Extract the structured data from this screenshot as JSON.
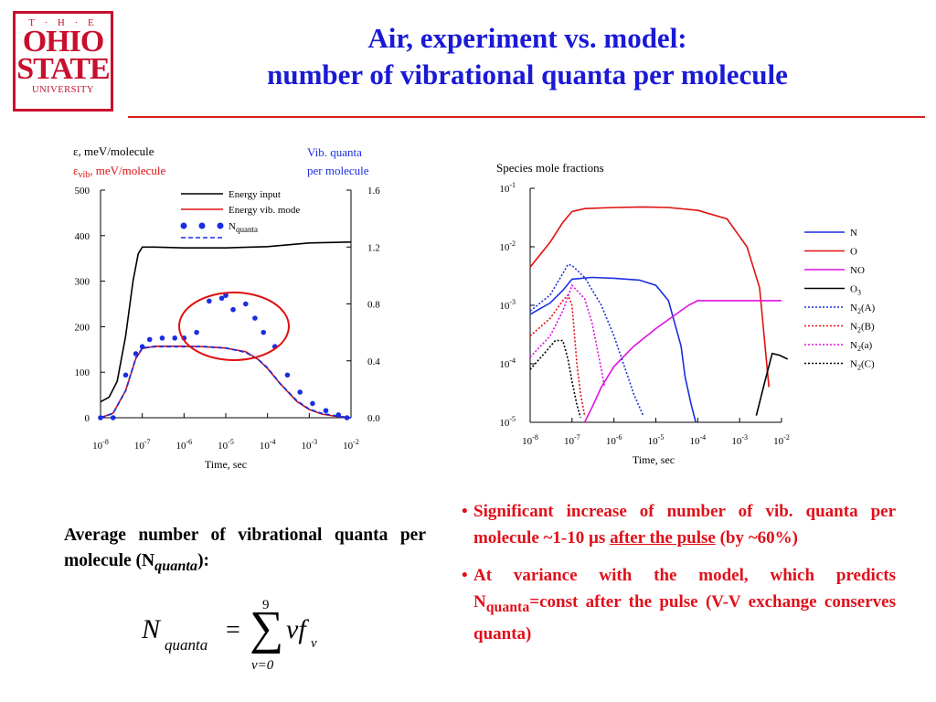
{
  "logo": {
    "line1": "T · H · E",
    "line2": "OHIO",
    "line3": "STATE",
    "line4": "UNIVERSITY"
  },
  "title": {
    "line1": "Air, experiment vs. model:",
    "line2": "number of vibrational quanta per molecule"
  },
  "colors": {
    "title": "#1a1ad6",
    "accent": "#e0101a",
    "rule": "#d6201e"
  },
  "chart_data": [
    {
      "type": "line",
      "left_axis_labels": {
        "l1": "ε, meV/molecule",
        "l2a": "ε",
        "l2b": "vib",
        "l2c": ", meV/molecule"
      },
      "right_axis_label": {
        "l1": "Vib. quanta",
        "l2": "per molecule"
      },
      "xlabel": "Time, sec",
      "x_scale": "log",
      "xlim": [
        1e-08,
        0.01
      ],
      "x_ticks": [
        {
          "b": "10",
          "e": "-8"
        },
        {
          "b": "10",
          "e": "-7"
        },
        {
          "b": "10",
          "e": "-6"
        },
        {
          "b": "10",
          "e": "-5"
        },
        {
          "b": "10",
          "e": "-4"
        },
        {
          "b": "10",
          "e": "-3"
        },
        {
          "b": "10",
          "e": "-2"
        }
      ],
      "ylim_left": [
        0,
        500
      ],
      "y_ticks_left": [
        "0",
        "100",
        "200",
        "300",
        "400",
        "500"
      ],
      "ylim_right": [
        0,
        1.6
      ],
      "y_ticks_right": [
        "0.0",
        "0.4",
        "0.8",
        "1.2",
        "1.6"
      ],
      "legend": [
        {
          "label": "Energy input",
          "color": "#000000",
          "style": "solid"
        },
        {
          "label": "Energy vib. mode",
          "color": "#e01010",
          "style": "solid"
        },
        {
          "label": "N",
          "sub": "quanta",
          "color": "#1a2ee0",
          "style": "dots+dash"
        }
      ],
      "series": [
        {
          "name": "Energy input",
          "color": "#000000",
          "axis": "left",
          "x": [
            1e-08,
            1.6e-08,
            2.5e-08,
            4e-08,
            6e-08,
            8e-08,
            1e-07,
            2e-07,
            1e-06,
            1e-05,
            0.0001,
            0.001,
            0.01
          ],
          "y": [
            35,
            45,
            80,
            180,
            300,
            360,
            375,
            375,
            373,
            373,
            376,
            384,
            386
          ]
        },
        {
          "name": "Energy vib. mode",
          "color": "#e01010",
          "axis": "left",
          "x": [
            1e-08,
            2e-08,
            4e-08,
            7e-08,
            1e-07,
            2e-07,
            5e-07,
            1e-06,
            3e-06,
            1e-05,
            3e-05,
            6e-05,
            0.0001,
            0.0002,
            0.0005,
            0.001,
            0.002,
            0.005,
            0.01
          ],
          "y": [
            0,
            10,
            60,
            130,
            152,
            157,
            157,
            157,
            156,
            153,
            145,
            128,
            108,
            75,
            36,
            18,
            8,
            2,
            0
          ]
        },
        {
          "name": "N",
          "sub": "quanta",
          "color": "#1a2ee0",
          "axis": "right",
          "style": "markers",
          "x": [
            1e-08,
            2e-08,
            4e-08,
            7e-08,
            1e-07,
            1.5e-07,
            3e-07,
            6e-07,
            1e-06,
            2e-06,
            4e-06,
            8e-06,
            1e-05,
            1.5e-05,
            3e-05,
            5e-05,
            8e-05,
            0.00015,
            0.0003,
            0.0006,
            0.0012,
            0.0025,
            0.005,
            0.008
          ],
          "y": [
            0.0,
            0.0,
            0.3,
            0.45,
            0.5,
            0.55,
            0.56,
            0.56,
            0.56,
            0.6,
            0.82,
            0.84,
            0.86,
            0.76,
            0.8,
            0.7,
            0.6,
            0.5,
            0.3,
            0.18,
            0.1,
            0.05,
            0.02,
            0.0
          ]
        },
        {
          "name": "N",
          "sub": "quanta",
          "color": "#1a2ee0",
          "axis": "right",
          "style": "dashed",
          "x": [
            1e-08,
            2e-08,
            4e-08,
            7e-08,
            1e-07,
            2e-07,
            5e-07,
            1e-06,
            3e-06,
            1e-05,
            3e-05,
            6e-05,
            0.0001,
            0.0002,
            0.0005,
            0.001,
            0.002,
            0.005,
            0.01
          ],
          "y": [
            0,
            0.03,
            0.19,
            0.42,
            0.49,
            0.5,
            0.5,
            0.5,
            0.5,
            0.49,
            0.46,
            0.41,
            0.35,
            0.24,
            0.12,
            0.06,
            0.03,
            0.01,
            0
          ]
        }
      ]
    },
    {
      "type": "line",
      "title": "Species mole fractions",
      "xlabel": "Time, sec",
      "x_scale": "log",
      "xlim": [
        1e-08,
        0.01
      ],
      "y_scale": "log",
      "ylim": [
        1e-05,
        0.1
      ],
      "x_ticks": [
        {
          "b": "10",
          "e": "-8"
        },
        {
          "b": "10",
          "e": "-7"
        },
        {
          "b": "10",
          "e": "-6"
        },
        {
          "b": "10",
          "e": "-5"
        },
        {
          "b": "10",
          "e": "-4"
        },
        {
          "b": "10",
          "e": "-3"
        },
        {
          "b": "10",
          "e": "-2"
        }
      ],
      "y_ticks": [
        {
          "b": "10",
          "e": "-5"
        },
        {
          "b": "10",
          "e": "-4"
        },
        {
          "b": "10",
          "e": "-3"
        },
        {
          "b": "10",
          "e": "-2"
        },
        {
          "b": "10",
          "e": "-1"
        }
      ],
      "legend_position": "right",
      "series": [
        {
          "name": "N",
          "color": "#1a2ee0",
          "style": "solid",
          "x": [
            1e-08,
            3e-08,
            6e-08,
            1e-07,
            3e-07,
            1e-06,
            4e-06,
            1e-05,
            2e-05,
            4e-05,
            5e-05,
            7e-05,
            9e-05
          ],
          "y": [
            0.0007,
            0.0011,
            0.0018,
            0.0028,
            0.003,
            0.0029,
            0.0027,
            0.0022,
            0.0012,
            0.0002,
            6e-05,
            2e-05,
            1e-05
          ]
        },
        {
          "name": "O",
          "color": "#e01010",
          "style": "solid",
          "x": [
            1e-08,
            3e-08,
            6e-08,
            1e-07,
            2e-07,
            1e-06,
            5e-06,
            2e-05,
            0.0001,
            0.0005,
            0.0015,
            0.003,
            0.005
          ],
          "y": [
            0.0045,
            0.012,
            0.026,
            0.04,
            0.045,
            0.047,
            0.048,
            0.047,
            0.042,
            0.03,
            0.01,
            0.002,
            4e-05
          ]
        },
        {
          "name": "NO",
          "color": "#e010e0",
          "style": "solid",
          "x": [
            2e-07,
            3e-07,
            5e-07,
            1e-06,
            3e-06,
            1e-05,
            3e-05,
            6e-05,
            0.0001,
            0.001,
            0.01
          ],
          "y": [
            1e-05,
            1.8e-05,
            4e-05,
            9e-05,
            0.0002,
            0.0004,
            0.0007,
            0.001,
            0.0012,
            0.0012,
            0.0012
          ]
        },
        {
          "name": "O",
          "sub": "3",
          "color": "#000000",
          "style": "solid",
          "x": [
            0.0025,
            0.004,
            0.006,
            0.009,
            0.014
          ],
          "y": [
            1.3e-05,
            5e-05,
            0.00015,
            0.00014,
            0.00012
          ]
        },
        {
          "name": "N",
          "sub": "2",
          "suffix": "(A)",
          "color": "#1a2ee0",
          "style": "dotted",
          "x": [
            1e-08,
            3e-08,
            6e-08,
            8e-08,
            1e-07,
            2e-07,
            5e-07,
            1e-06,
            2e-06,
            3e-06,
            5e-06
          ],
          "y": [
            0.0008,
            0.0015,
            0.0035,
            0.005,
            0.0048,
            0.003,
            0.001,
            0.0003,
            7e-05,
            3e-05,
            1.3e-05
          ]
        },
        {
          "name": "N",
          "sub": "2",
          "suffix": "(B)",
          "color": "#e01010",
          "style": "dotted",
          "x": [
            1e-08,
            3e-08,
            6e-08,
            8e-08,
            1e-07,
            1.3e-07,
            1.6e-07,
            2e-07
          ],
          "y": [
            0.0003,
            0.0006,
            0.0012,
            0.0015,
            0.001,
            0.0001,
            3e-05,
            1.3e-05
          ]
        },
        {
          "name": "N",
          "sub": "2",
          "suffix": "(a)",
          "color": "#e010e0",
          "style": "dotted",
          "x": [
            1e-08,
            3e-08,
            6e-08,
            1e-07,
            2e-07,
            3e-07,
            5e-07,
            6e-07
          ],
          "y": [
            0.00013,
            0.0003,
            0.0008,
            0.0022,
            0.0013,
            0.0005,
            8e-05,
            4e-05
          ]
        },
        {
          "name": "N",
          "sub": "2",
          "suffix": "(C)",
          "color": "#000000",
          "style": "dotted",
          "x": [
            1e-08,
            2e-08,
            4e-08,
            6e-08,
            8e-08,
            1e-07,
            1.3e-07,
            1.6e-07
          ],
          "y": [
            8e-05,
            0.00014,
            0.00025,
            0.00025,
            0.00012,
            5e-05,
            2e-05,
            1.2e-05
          ]
        }
      ]
    }
  ],
  "average": {
    "text": "Average number of vibrational quanta per molecule (N",
    "sub": "quanta",
    "end": "):"
  },
  "formula": {
    "lhs": "N",
    "lhs_sub": "quanta",
    "eq": "=",
    "upper": "9",
    "lower": "v=0",
    "rhs": "vf",
    "rhs_sub": "v"
  },
  "bullets": {
    "b1": "Significant increase of number of vib. quanta per molecule ~1-10 µs ",
    "b1u": "after the pulse",
    "b1end": " (by ~60%)",
    "b2": "At variance with the model, which predicts N",
    "b2sub": "quanta",
    "b2end": "=const after the pulse (V-V exchange conserves quanta)"
  }
}
